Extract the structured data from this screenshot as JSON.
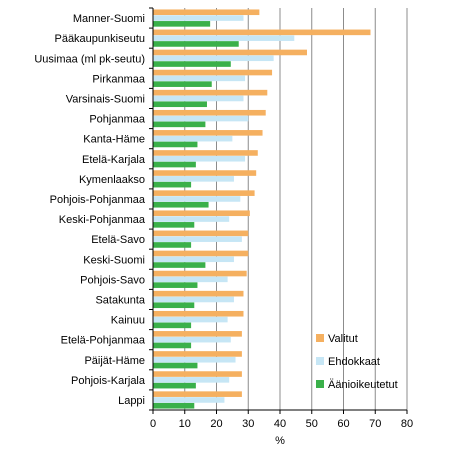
{
  "chart_data": {
    "type": "bar",
    "orientation": "horizontal",
    "categories": [
      "Manner-Suomi",
      "Pääkaupunkiseutu",
      "Uusimaa (ml pk-seutu)",
      "Pirkanmaa",
      "Varsinais-Suomi",
      "Pohjanmaa",
      "Kanta-Häme",
      "Etelä-Karjala",
      "Kymenlaakso",
      "Pohjois-Pohjanmaa",
      "Keski-Pohjanmaa",
      "Etelä-Savo",
      "Keski-Suomi",
      "Pohjois-Savo",
      "Satakunta",
      "Kainuu",
      "Etelä-Pohjanmaa",
      "Päijät-Häme",
      "Pohjois-Karjala",
      "Lappi"
    ],
    "series": [
      {
        "name": "Valitut",
        "color": "#f5b060",
        "values": [
          33.5,
          68.5,
          48.5,
          37.5,
          36,
          35.5,
          34.5,
          33,
          32.5,
          32,
          30.5,
          30,
          30,
          29.5,
          28.5,
          28.5,
          28,
          28,
          28,
          28
        ]
      },
      {
        "name": "Ehdokkaat",
        "color": "#c6e6f5",
        "values": [
          28.5,
          44.5,
          38,
          29,
          28.5,
          30,
          25,
          29,
          25.5,
          27.5,
          24,
          28,
          25.5,
          23.5,
          25.5,
          23.5,
          24.5,
          26,
          24,
          22.5
        ]
      },
      {
        "name": "Äänioikeutetut",
        "color": "#3ab04a",
        "values": [
          18,
          27,
          24.5,
          18.5,
          17,
          16.5,
          14,
          13.5,
          12,
          17.5,
          13,
          12,
          16.5,
          14,
          13,
          12,
          12,
          14,
          13.5,
          13
        ]
      }
    ],
    "xlim": [
      0,
      80
    ],
    "xticks": [
      "0",
      "10",
      "20",
      "30",
      "40",
      "50",
      "60",
      "70",
      "80"
    ],
    "xlabel": "%",
    "ylabel": "",
    "title": "",
    "grid": "vertical",
    "legend_position": "lower-right"
  }
}
